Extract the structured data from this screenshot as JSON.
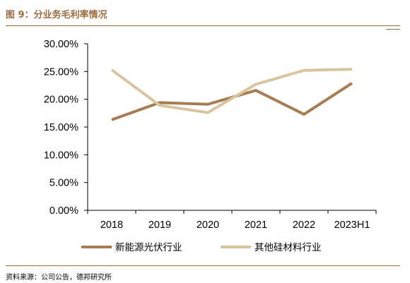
{
  "figure": {
    "title": "图 9：分业务毛利率情况",
    "source": "资料来源：公司公告，德邦研究所"
  },
  "colors": {
    "brand": "#9c6b3f",
    "series_1": "#a67c52",
    "series_2": "#d9c4a0"
  },
  "chart_data": {
    "type": "line",
    "x": [
      "2018",
      "2019",
      "2020",
      "2021",
      "2022",
      "2023H1"
    ],
    "y_tick_labels": [
      "0.00%",
      "5.00%",
      "10.00%",
      "15.00%",
      "20.00%",
      "25.00%",
      "30.00%"
    ],
    "y_ticks": [
      0,
      5,
      10,
      15,
      20,
      25,
      30
    ],
    "ylim": [
      0,
      30
    ],
    "y_unit": "%",
    "grid": false,
    "legend_position": "bottom",
    "series": [
      {
        "name": "新能源光伏行业",
        "color": "#a67c52",
        "values": [
          16.3,
          19.4,
          19.1,
          21.6,
          17.3,
          22.9
        ]
      },
      {
        "name": "其他硅材料行业",
        "color": "#d9c4a0",
        "values": [
          25.3,
          18.9,
          17.6,
          22.7,
          25.2,
          25.4
        ]
      }
    ]
  }
}
